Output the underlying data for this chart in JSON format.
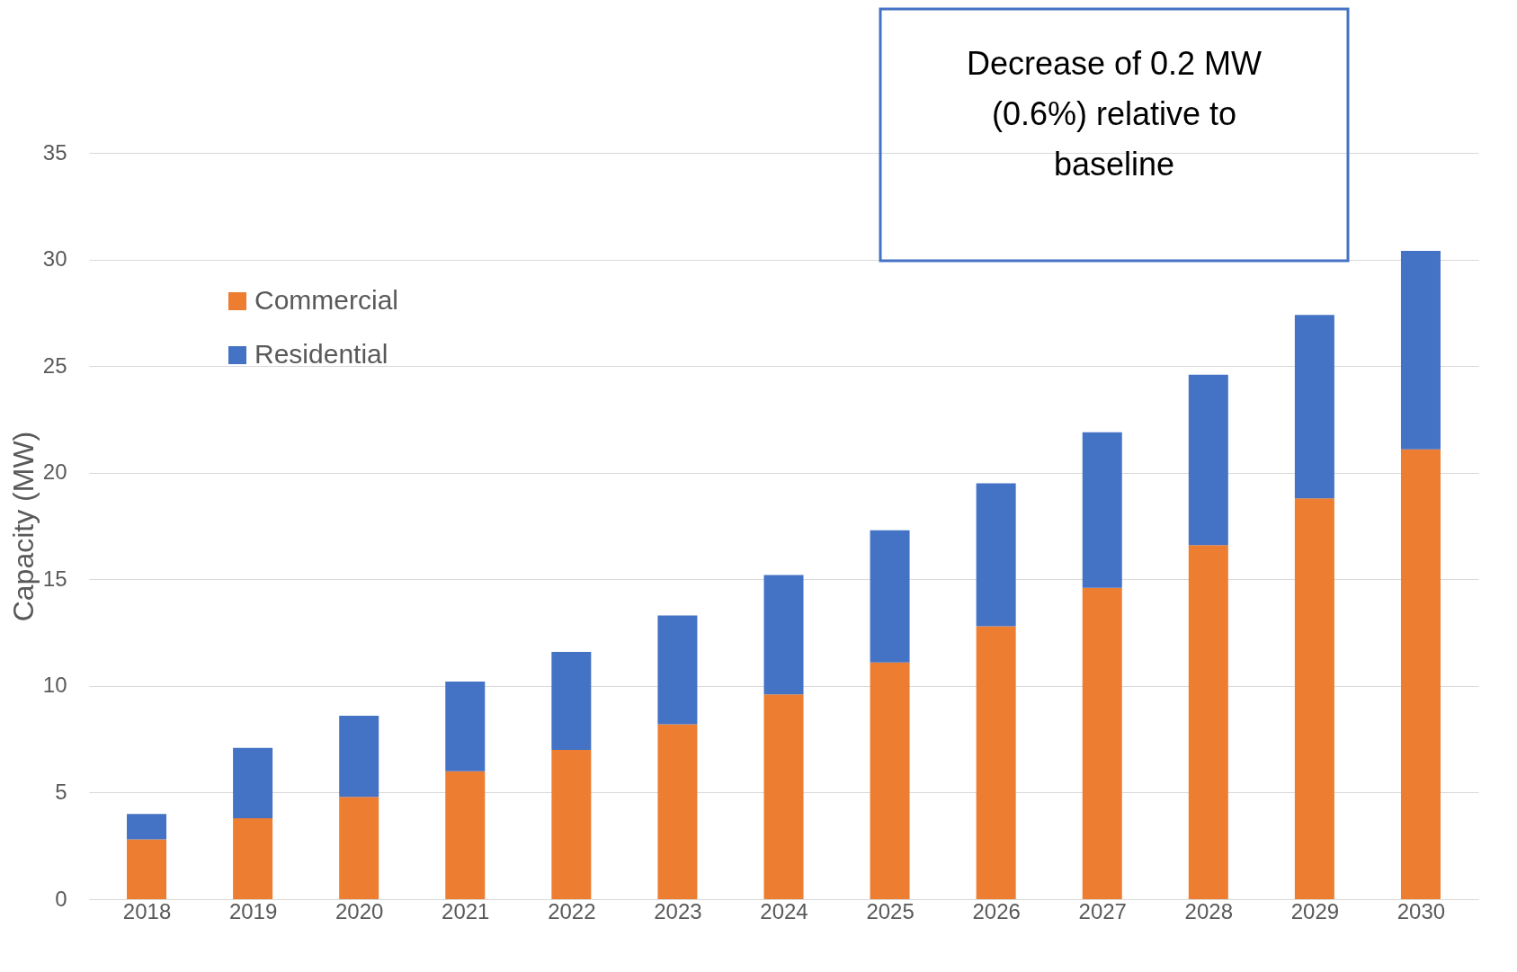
{
  "chart_data": {
    "type": "bar",
    "stacked": true,
    "ylabel": "Capacity (MW)",
    "categories": [
      "2018",
      "2019",
      "2020",
      "2021",
      "2022",
      "2023",
      "2024",
      "2025",
      "2026",
      "2027",
      "2028",
      "2029",
      "2030"
    ],
    "series": [
      {
        "name": "Commercial",
        "color": "#ed7d31",
        "values": [
          2.8,
          3.8,
          4.8,
          6.0,
          7.0,
          8.2,
          9.6,
          11.1,
          12.8,
          14.6,
          16.6,
          18.8,
          21.1
        ]
      },
      {
        "name": "Residential",
        "color": "#4472c4",
        "values": [
          1.2,
          3.3,
          3.8,
          4.2,
          4.6,
          5.1,
          5.6,
          6.2,
          6.7,
          7.3,
          8.0,
          8.6,
          9.3
        ]
      }
    ],
    "ylim": [
      0,
      35
    ],
    "yticks": [
      0,
      5,
      10,
      15,
      20,
      25,
      30,
      35
    ],
    "grid": "y",
    "legend": "top left",
    "annotations": [
      "Decrease of 0.2 MW (0.6%) relative to baseline"
    ]
  }
}
